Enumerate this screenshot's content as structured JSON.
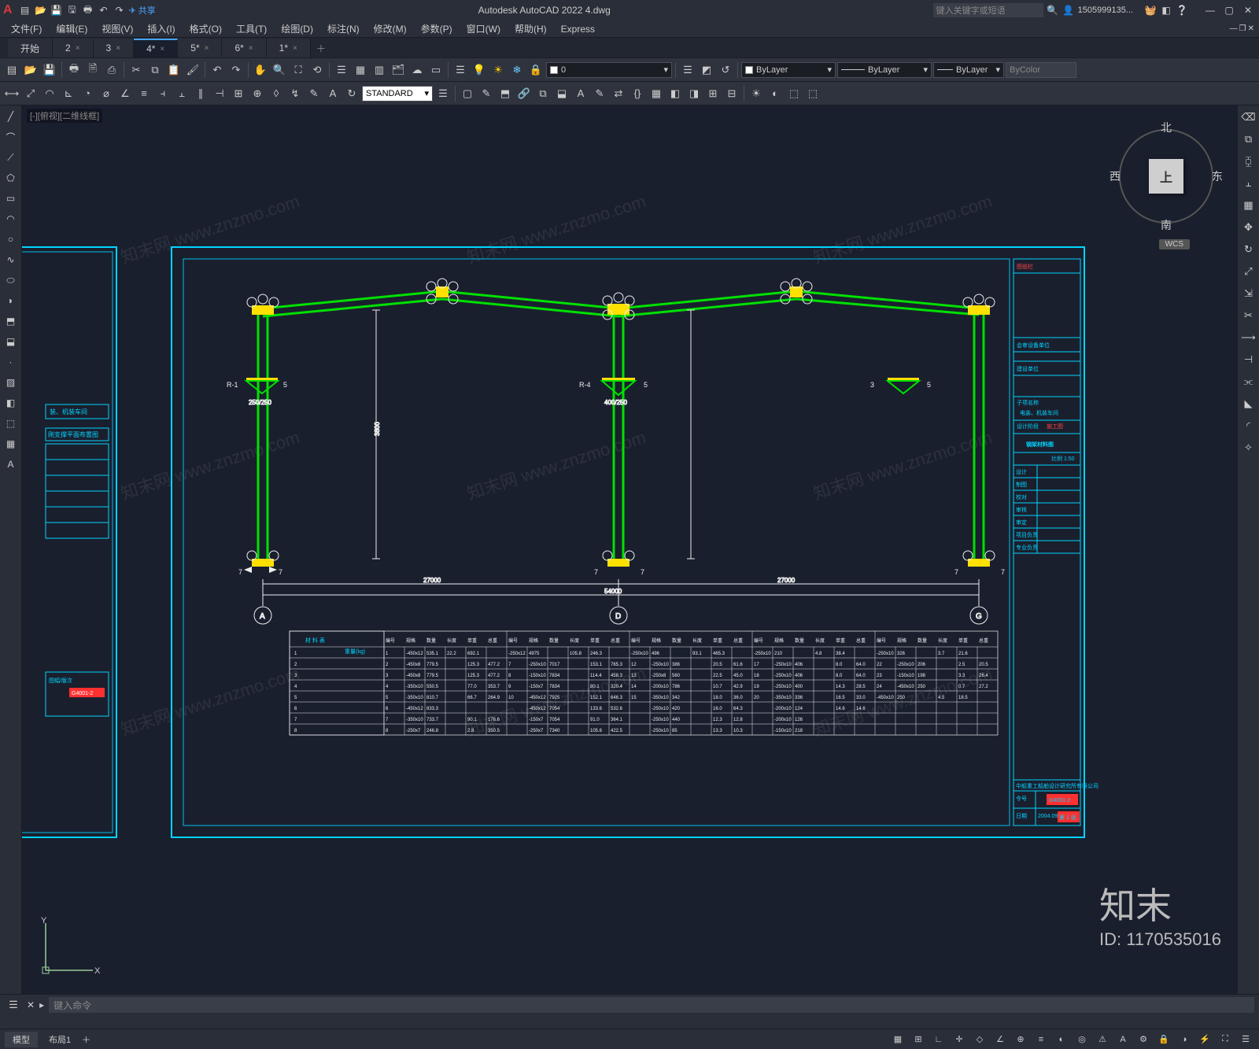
{
  "app": {
    "title": "Autodesk AutoCAD 2022   4.dwg",
    "search_placeholder": "键入关键字或短语",
    "user": "1505999135...",
    "share": "共享"
  },
  "menus": [
    "文件(F)",
    "编辑(E)",
    "视图(V)",
    "插入(I)",
    "格式(O)",
    "工具(T)",
    "绘图(D)",
    "标注(N)",
    "修改(M)",
    "参数(P)",
    "窗口(W)",
    "帮助(H)",
    "Express"
  ],
  "doc_tabs": {
    "start": "开始",
    "items": [
      {
        "label": "2",
        "active": false
      },
      {
        "label": "3",
        "active": false
      },
      {
        "label": "4*",
        "active": true
      },
      {
        "label": "5*",
        "active": false
      },
      {
        "label": "6*",
        "active": false
      },
      {
        "label": "1*",
        "active": false
      }
    ]
  },
  "layer_props": {
    "current_layer": "0",
    "bylayer1": "ByLayer",
    "bylayer2": "ByLayer",
    "bylayer3": "ByLayer",
    "bycolor": "ByColor",
    "text_style": "STANDARD"
  },
  "viewport": {
    "label": "[-][俯视][二维线框]",
    "nav": {
      "n": "北",
      "s": "南",
      "e": "东",
      "w": "西",
      "face": "上",
      "wcs": "WCS"
    },
    "ucs": {
      "x": "X",
      "y": "Y"
    }
  },
  "watermark_text": "知末网 www.znzmo.com",
  "brand": {
    "name": "知末",
    "id": "ID: 1170535016"
  },
  "cmd": {
    "hint": "",
    "placeholder": "键入命令"
  },
  "status": {
    "model": "模型",
    "layout": "布局1"
  },
  "colors": {
    "bg": "#1a1f2e",
    "frame_cyan": "#00d5ff",
    "frame_cyan_inner": "#00bfe6",
    "green": "#00e000",
    "yellow": "#ffe000",
    "white": "#eeeeee",
    "red": "#ff3030",
    "grid": "#888888"
  },
  "drawing": {
    "title_block": {
      "header": "图纸栏",
      "rows1": [
        "会审设备单位",
        "建设单位"
      ],
      "subproj_label": "子项名称",
      "subproj": "电装、机装车间",
      "proj_stage_label": "设计阶段",
      "proj_stage": "施工图",
      "drawing_label": "图名",
      "drawing_name": "钢架材料图",
      "scale_label": "比例 1:50",
      "sig_rows": [
        "设计",
        "制图",
        "校对",
        "审核",
        "审定",
        "项目负责",
        "专业负责"
      ],
      "co_line": "中船重工船舶设计研究所有限公司",
      "foot": {
        "no_label": "令号",
        "no": "",
        "dwg_label": "图号",
        "dwg": "G4001-2",
        "date_label": "日期",
        "date": "2004.09",
        "ver_label": "图幅/版次",
        "ver": "第 1 张"
      }
    },
    "grid_marks": [
      "A",
      "D",
      "G"
    ],
    "dims": {
      "span1": "27000",
      "span2": "27000",
      "total": "54000",
      "h1": "3000",
      "h2": "3800",
      "c1": "250/250",
      "c2": "400/250"
    },
    "material_table": {
      "title": "材    料    表",
      "unit": "重量(kg)",
      "head": [
        "编号",
        "规格",
        "数量",
        "长度",
        "单重",
        "总重",
        "",
        "编号",
        "规格",
        "数量",
        "长度",
        "单重",
        "总重",
        "",
        "编号",
        "规格",
        "数量",
        "长度",
        "单重",
        "总重",
        "",
        "编号",
        "规格",
        "数量",
        "长度",
        "单重",
        "总重",
        "",
        "编号",
        "规格",
        "数量",
        "长度",
        "单重",
        "总重"
      ],
      "rows": [
        [
          "1",
          "-450x12",
          "535.1",
          "22.2",
          "692.1",
          "",
          "6",
          "-250x12",
          "4975",
          "",
          "105.8",
          "246.3",
          "",
          "11",
          "-250x10",
          "496",
          "",
          "93.1",
          "465.3",
          "",
          "16",
          "-250x10",
          "210",
          "",
          "4.8",
          "38.4",
          "",
          "21",
          "-250x10",
          "326",
          "",
          "3.7",
          "21.6"
        ],
        [
          "2",
          "-450x8",
          "779.5",
          "",
          "125.3",
          "477.2",
          "",
          "7",
          "-250x10",
          "7017",
          "",
          "153.1",
          "765.3",
          "",
          "12",
          "-250x10",
          "386",
          "",
          "20.5",
          "61.6",
          "",
          "17",
          "-250x10",
          "406",
          "",
          "8.0",
          "64.0",
          "",
          "22",
          "-250x10",
          "206",
          "",
          "2.5",
          "20.5"
        ],
        [
          "3",
          "-450x8",
          "779.5",
          "",
          "125.3",
          "477.2",
          "",
          "8",
          "-150x10",
          "7834",
          "",
          "114.4",
          "458.3",
          "",
          "13",
          "-250x8",
          "560",
          "",
          "22.5",
          "45.0",
          "",
          "18",
          "-250x10",
          "406",
          "",
          "8.0",
          "64.0",
          "",
          "23",
          "-150x10",
          "198",
          "",
          "3.3",
          "26.4"
        ],
        [
          "4",
          "-350x10",
          "550.5",
          "",
          "77.0",
          "353.7",
          "",
          "9",
          "-150x7",
          "7834",
          "",
          "80.1",
          "320.4",
          "",
          "14",
          "-200x10",
          "786",
          "",
          "10.7",
          "42.9",
          "",
          "19",
          "-250x10",
          "400",
          "",
          "14.3",
          "28.5",
          "",
          "24",
          "-450x10",
          "250",
          "",
          "0.7",
          "27.2"
        ],
        [
          "5",
          "-350x10",
          "810.7",
          "",
          "66.7",
          "264.9",
          "",
          "10",
          "-450x12",
          "7925",
          "",
          "152.1",
          "646.3",
          "",
          "15",
          "-350x10",
          "342",
          "",
          "18.0",
          "36.0",
          "",
          "20",
          "-350x10",
          "336",
          "",
          "16.5",
          "33.0",
          "25",
          "-450x10",
          "250",
          "",
          "4.5",
          "18.5"
        ],
        [
          "6",
          "-450x12",
          "833.3",
          "",
          "",
          "",
          "",
          "",
          "-450x12",
          "7054",
          "",
          "133.6",
          "532.6",
          "",
          "",
          "-250x10",
          "420",
          "",
          "16.0",
          "64.3",
          "",
          "",
          "-200x10",
          "124",
          "",
          "14.6",
          "14.6",
          "",
          "",
          "",
          "",
          "",
          "",
          ""
        ],
        [
          "7",
          "-350x10",
          "733.7",
          "",
          "90.1",
          "176.6",
          "",
          "",
          "-150x7",
          "7054",
          "",
          "91.0",
          "364.1",
          "",
          "",
          "-250x10",
          "440",
          "",
          "12.3",
          "12.8",
          "",
          "",
          "-200x10",
          "126",
          "",
          "",
          "",
          "",
          "",
          "",
          "",
          "",
          "",
          ""
        ],
        [
          "8",
          "-250x7",
          "246.8",
          "",
          "2.8",
          "350.5",
          "",
          "",
          "-250x7",
          "7340",
          "",
          "105.6",
          "422.5",
          "",
          "",
          "-250x10",
          "85",
          "",
          "13.3",
          "10.3",
          "",
          "",
          "-150x10",
          "218",
          "",
          "",
          "",
          "",
          "",
          "",
          "",
          "",
          "",
          ""
        ]
      ]
    },
    "left_sheet": {
      "title": "刚支撑平面布置图",
      "sub1": "装、机装车间",
      "foot_dwg": "G4001-2",
      "foot_no": "图幅/版次"
    }
  }
}
